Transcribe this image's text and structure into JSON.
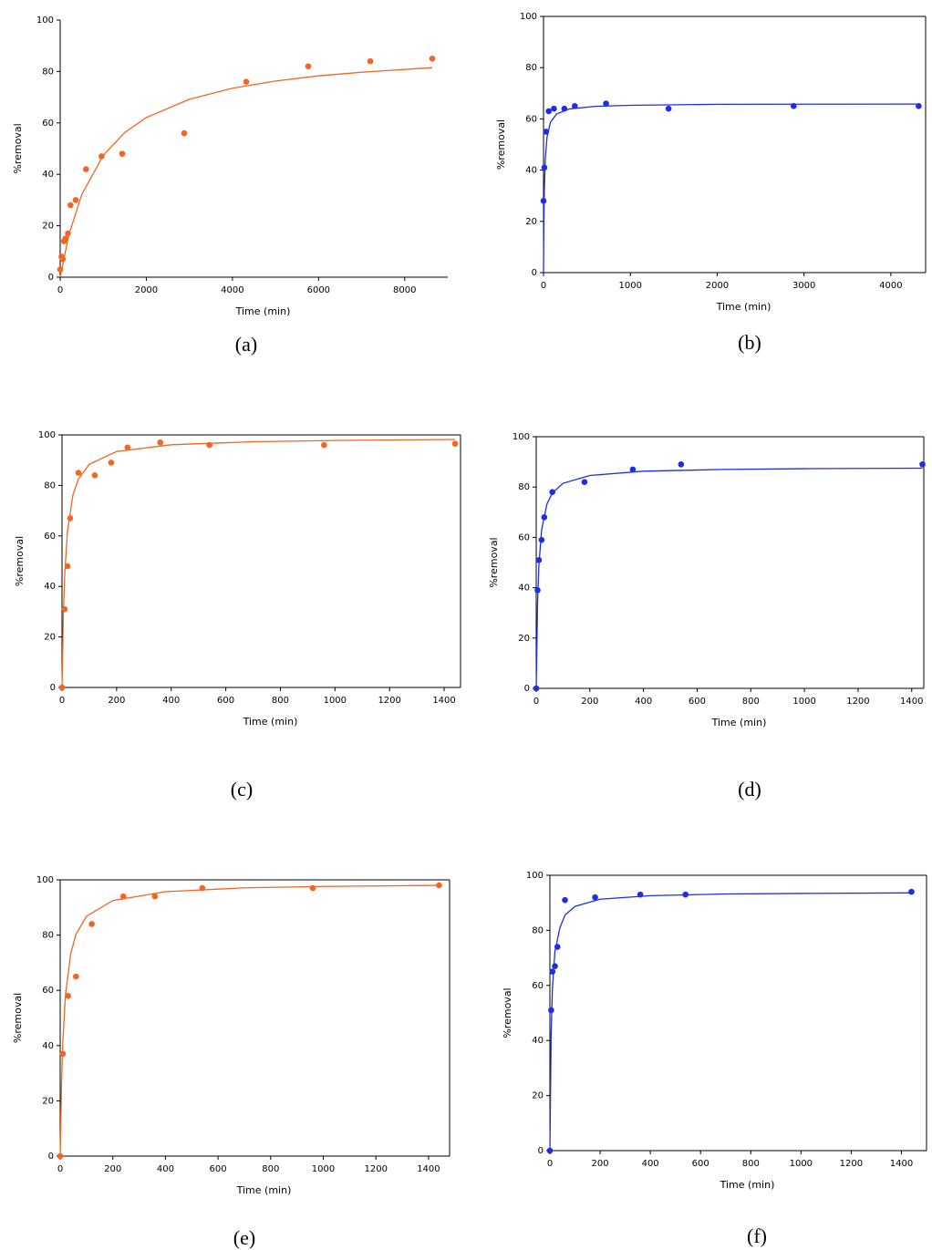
{
  "chart_data": [
    {
      "type": "scatter",
      "caption": "(a)",
      "xlabel": "Time (min)",
      "ylabel": "%removal",
      "frame": false,
      "xlim": [
        0,
        9000
      ],
      "ylim": [
        0,
        100
      ],
      "xticks": [
        0,
        2000,
        4000,
        6000,
        8000
      ],
      "yticks": [
        0,
        20,
        40,
        60,
        80,
        100
      ],
      "series": [
        {
          "type": "scatter",
          "color": "#f26522",
          "x": [
            0,
            30,
            60,
            90,
            120,
            180,
            240,
            360,
            600,
            960,
            1440,
            2880,
            4320,
            5760,
            7200,
            8640
          ],
          "values": [
            3,
            8,
            7,
            14,
            15,
            17,
            28,
            30,
            42,
            47,
            48,
            56,
            76,
            82,
            84,
            85
          ]
        },
        {
          "type": "line",
          "color": "#f26522",
          "x": [
            0,
            200,
            500,
            1000,
            1500,
            2000,
            3000,
            4000,
            5000,
            6000,
            7000,
            8640
          ],
          "values": [
            0,
            16.4,
            32.1,
            47.4,
            56.3,
            62.1,
            69.2,
            73.5,
            76.3,
            78.3,
            79.7,
            81.5
          ]
        }
      ]
    },
    {
      "type": "scatter",
      "caption": "(b)",
      "xlabel": "Time (min)",
      "ylabel": "%removal",
      "frame": true,
      "xlim": [
        0,
        4400
      ],
      "ylim": [
        0,
        100
      ],
      "xticks": [
        0,
        1000,
        2000,
        3000,
        4000
      ],
      "yticks": [
        0,
        20,
        40,
        60,
        80,
        100
      ],
      "series": [
        {
          "type": "scatter",
          "color": "#1f2ee6",
          "x": [
            0,
            10,
            30,
            60,
            120,
            240,
            360,
            720,
            1440,
            2880,
            4320
          ],
          "values": [
            28,
            41,
            55,
            63,
            64,
            64,
            65,
            66,
            64,
            65,
            65
          ]
        },
        {
          "type": "line",
          "color": "#1f2ee6",
          "x": [
            0,
            5,
            10,
            20,
            40,
            80,
            150,
            300,
            600,
            1000,
            2000,
            4320
          ],
          "values": [
            0,
            22,
            33,
            44,
            52.8,
            58.7,
            61.9,
            63.9,
            64.9,
            65.3,
            65.7,
            65.8
          ]
        }
      ]
    },
    {
      "type": "scatter",
      "caption": "(c)",
      "xlabel": "Time (min)",
      "ylabel": "%removal",
      "frame": true,
      "xlim": [
        0,
        1460
      ],
      "ylim": [
        0,
        100
      ],
      "xticks": [
        0,
        200,
        400,
        600,
        800,
        1000,
        1200,
        1400
      ],
      "yticks": [
        0,
        20,
        40,
        60,
        80,
        100
      ],
      "series": [
        {
          "type": "scatter",
          "color": "#f26522",
          "x": [
            0,
            10,
            20,
            30,
            60,
            120,
            180,
            240,
            360,
            540,
            960,
            1440
          ],
          "values": [
            0,
            31,
            48,
            67,
            85,
            84,
            89,
            95,
            97,
            96,
            96,
            96.5
          ]
        },
        {
          "type": "line",
          "color": "#f26522",
          "x": [
            0,
            5,
            10,
            20,
            40,
            60,
            100,
            200,
            400,
            700,
            1000,
            1440
          ],
          "values": [
            0,
            29.1,
            45,
            61.9,
            76.2,
            82.5,
            88.4,
            93.4,
            96.1,
            97.3,
            97.8,
            98.2
          ]
        }
      ]
    },
    {
      "type": "scatter",
      "caption": "(d)",
      "xlabel": "Time (min)",
      "ylabel": "%removal",
      "frame": true,
      "xlim": [
        0,
        1445
      ],
      "ylim": [
        0,
        100
      ],
      "xticks": [
        0,
        200,
        400,
        600,
        800,
        1000,
        1200,
        1400
      ],
      "yticks": [
        0,
        20,
        40,
        60,
        80,
        100
      ],
      "series": [
        {
          "type": "scatter",
          "color": "#1f2ee6",
          "x": [
            0,
            5,
            10,
            20,
            30,
            60,
            180,
            360,
            540,
            1440
          ],
          "values": [
            0,
            39,
            51,
            59,
            68,
            78,
            82,
            87,
            89,
            89
          ]
        },
        {
          "type": "line",
          "color": "#1f2ee6",
          "x": [
            0,
            5,
            10,
            20,
            40,
            60,
            100,
            200,
            400,
            700,
            1000,
            1440
          ],
          "values": [
            0,
            33.8,
            48.9,
            62.9,
            73.3,
            77.6,
            81.5,
            84.6,
            86.3,
            87,
            87.3,
            87.5
          ]
        }
      ]
    },
    {
      "type": "scatter",
      "caption": "(e)",
      "xlabel": "Time (min)",
      "ylabel": "%removal",
      "frame": true,
      "xlim": [
        0,
        1480
      ],
      "ylim": [
        0,
        100
      ],
      "xticks": [
        0,
        200,
        400,
        600,
        800,
        1000,
        1200,
        1400
      ],
      "yticks": [
        0,
        20,
        40,
        60,
        80,
        100
      ],
      "series": [
        {
          "type": "scatter",
          "color": "#f26522",
          "x": [
            0,
            10,
            30,
            60,
            120,
            240,
            360,
            540,
            960,
            1440
          ],
          "values": [
            0,
            37,
            58,
            65,
            84,
            94,
            94,
            97,
            97,
            98
          ]
        },
        {
          "type": "line",
          "color": "#f26522",
          "x": [
            0,
            5,
            10,
            20,
            40,
            60,
            100,
            200,
            400,
            700,
            1000,
            1440
          ],
          "values": [
            0,
            26,
            41.3,
            58.2,
            73.3,
            80.3,
            86.8,
            92.5,
            95.7,
            97.1,
            97.6,
            98
          ]
        }
      ]
    },
    {
      "type": "scatter",
      "caption": "(f)",
      "xlabel": "Time (min)",
      "ylabel": "%removal",
      "frame": true,
      "xlim": [
        0,
        1500
      ],
      "ylim": [
        0,
        100
      ],
      "xticks": [
        0,
        200,
        400,
        600,
        800,
        1000,
        1200,
        1400
      ],
      "yticks": [
        0,
        20,
        40,
        60,
        80,
        100
      ],
      "series": [
        {
          "type": "scatter",
          "color": "#1f2ee6",
          "x": [
            0,
            5,
            10,
            20,
            30,
            60,
            180,
            360,
            540,
            1440
          ],
          "values": [
            0,
            51,
            65,
            67,
            74,
            91,
            92,
            93,
            93,
            94
          ]
        },
        {
          "type": "line",
          "color": "#1f2ee6",
          "x": [
            0,
            5,
            10,
            20,
            40,
            60,
            100,
            200,
            400,
            700,
            1000,
            1440
          ],
          "values": [
            0,
            42.7,
            58.8,
            72.3,
            81,
            85.5,
            88.7,
            91.3,
            92.6,
            93.2,
            93.4,
            93.6
          ]
        }
      ]
    }
  ]
}
